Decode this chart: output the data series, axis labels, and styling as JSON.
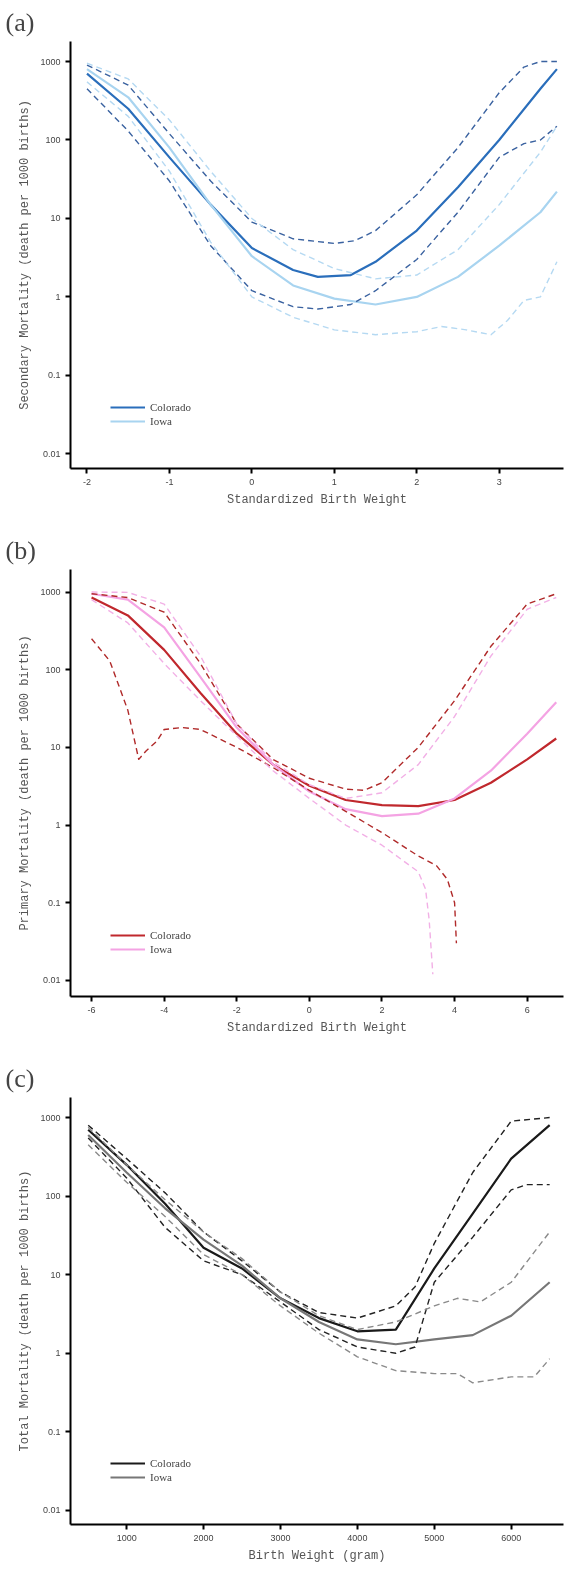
{
  "chart_data": [
    {
      "type": "line",
      "title": "(a)",
      "xlabel": "Standardized Birth Weight",
      "ylabel": "Secondary Mortality (death per 1000 births)",
      "log": "y",
      "grid": false,
      "legend": "bottom left",
      "xlim": [
        -2.2,
        3.78
      ],
      "xticks": [
        -2,
        -1,
        0,
        1,
        2,
        3
      ],
      "ylim": [
        0.0065,
        1800
      ],
      "yticks": [
        1000,
        100,
        10,
        1,
        0.1,
        0.01
      ],
      "series": [
        {
          "name": "Colorado",
          "color": "#2a6ebb",
          "line_style": "solid",
          "x": [
            -2,
            -1.5,
            -1,
            -0.5,
            0,
            0.5,
            0.8,
            1.2,
            1.5,
            2,
            2.5,
            3,
            3.5,
            3.7
          ],
          "values": [
            700,
            250,
            60,
            15,
            4.2,
            2.2,
            1.8,
            1.9,
            2.8,
            7,
            25,
            100,
            450,
            800
          ]
        },
        {
          "name": "Iowa",
          "color": "#a8d4f0",
          "line_style": "solid",
          "x": [
            -2,
            -1.5,
            -1,
            -0.5,
            0,
            0.5,
            1,
            1.5,
            2,
            2.5,
            3,
            3.5,
            3.7
          ],
          "values": [
            800,
            350,
            80,
            15,
            3.3,
            1.4,
            0.95,
            0.8,
            1.0,
            1.8,
            4.5,
            12,
            22
          ]
        },
        {
          "color": "#3a62a0",
          "line_style": "dashed",
          "x": [
            -2,
            -1.5,
            -1,
            -0.5,
            0,
            0.5,
            1,
            1.25,
            1.5,
            2,
            2.5,
            3,
            3.3,
            3.5,
            3.7
          ],
          "values": [
            900,
            500,
            120,
            30,
            9,
            5.5,
            4.8,
            5.2,
            7,
            20,
            80,
            400,
            850,
            1000,
            1000
          ]
        },
        {
          "color": "#3a62a0",
          "line_style": "dashed",
          "x": [
            -2,
            -1.5,
            -1,
            -0.5,
            0,
            0.5,
            0.8,
            1.2,
            1.5,
            2,
            2.5,
            3,
            3.3,
            3.5,
            3.7
          ],
          "values": [
            450,
            130,
            30,
            4.5,
            1.2,
            0.75,
            0.7,
            0.8,
            1.2,
            3,
            12,
            60,
            90,
            100,
            150
          ]
        },
        {
          "color": "#b5d9f2",
          "line_style": "dashed",
          "x": [
            -2,
            -1.5,
            -1,
            -0.5,
            0,
            0.5,
            1,
            1.5,
            2,
            2.5,
            3,
            3.5,
            3.7
          ],
          "values": [
            950,
            600,
            180,
            40,
            10,
            4,
            2.3,
            1.7,
            1.9,
            4,
            15,
            70,
            150
          ]
        },
        {
          "color": "#b5d9f2",
          "line_style": "dashed",
          "x": [
            -2,
            -1.5,
            -1,
            -0.5,
            0,
            0.5,
            1,
            1.5,
            2,
            2.3,
            2.6,
            2.9,
            3.1,
            3.3,
            3.5,
            3.7
          ],
          "values": [
            550,
            200,
            40,
            5,
            1.0,
            0.55,
            0.38,
            0.33,
            0.36,
            0.42,
            0.38,
            0.33,
            0.5,
            0.9,
            1,
            2.8
          ]
        }
      ]
    },
    {
      "type": "line",
      "title": "(b)",
      "xlabel": "Standardized Birth Weight",
      "ylabel": "Primary Mortality (death per 1000 births)",
      "log": "y",
      "grid": false,
      "legend": "bottom left",
      "xlim": [
        -6.58,
        7.0
      ],
      "xticks": [
        -6,
        -4,
        -2,
        0,
        2,
        4,
        6
      ],
      "ylim": [
        0.0062,
        1950
      ],
      "yticks": [
        1000,
        100,
        10,
        1,
        0.1,
        0.01
      ],
      "series": [
        {
          "name": "Colorado",
          "color": "#c0282d",
          "line_style": "solid",
          "x": [
            -6,
            -5,
            -4,
            -3,
            -2,
            -1,
            0,
            1,
            2,
            3,
            4,
            5,
            6,
            6.8
          ],
          "values": [
            850,
            500,
            180,
            50,
            15,
            6,
            3.2,
            2.1,
            1.8,
            1.75,
            2.1,
            3.5,
            7,
            13
          ]
        },
        {
          "name": "Iowa",
          "color": "#f4a3e3",
          "line_style": "solid",
          "x": [
            -6,
            -5,
            -4,
            -3,
            -2,
            -1,
            0,
            1,
            2,
            3,
            4,
            5,
            6,
            6.8
          ],
          "values": [
            950,
            800,
            350,
            80,
            18,
            6,
            2.7,
            1.6,
            1.3,
            1.4,
            2.2,
            5,
            15,
            38
          ]
        },
        {
          "color": "#b02a2a",
          "line_style": "dashed",
          "x": [
            -6,
            -5,
            -4,
            -3,
            -2,
            -1,
            0,
            1,
            1.5,
            2,
            3,
            4,
            5,
            6,
            6.8
          ],
          "values": [
            950,
            850,
            550,
            120,
            20,
            7,
            4,
            2.9,
            2.8,
            3.5,
            10,
            40,
            200,
            700,
            950
          ]
        },
        {
          "color": "#b02a2a",
          "line_style": "dashed",
          "x": [
            -6,
            -5.5,
            -5,
            -4.7,
            -4.5,
            -4.2,
            -4,
            -3.5,
            -3,
            -2,
            -1,
            0,
            1,
            2,
            3,
            3.5,
            3.8,
            4,
            4.05
          ],
          "values": [
            250,
            130,
            30,
            7,
            9,
            12,
            17,
            18,
            17,
            10,
            5.5,
            2.8,
            1.5,
            0.8,
            0.4,
            0.3,
            0.2,
            0.1,
            0.03
          ]
        },
        {
          "color": "#f2b0e6",
          "line_style": "dashed",
          "x": [
            -6,
            -5,
            -4,
            -3,
            -2,
            -1,
            0,
            1,
            2,
            3,
            4,
            5,
            6,
            6.8
          ],
          "values": [
            1000,
            990,
            700,
            150,
            20,
            6.5,
            3.3,
            2.2,
            2.6,
            6,
            25,
            150,
            600,
            850
          ]
        },
        {
          "color": "#f2b0e6",
          "line_style": "dashed",
          "x": [
            -6,
            -5,
            -4,
            -3,
            -2,
            -1,
            0,
            1,
            2,
            3,
            3.2,
            3.3,
            3.4
          ],
          "values": [
            800,
            400,
            120,
            40,
            14,
            5,
            2.2,
            1.0,
            0.55,
            0.25,
            0.15,
            0.06,
            0.012
          ]
        }
      ]
    },
    {
      "type": "line",
      "title": "(c)",
      "xlabel": "Birth Weight (gram)",
      "ylabel": "Total Mortality (death per 1000 births)",
      "log": "y",
      "grid": false,
      "legend": "bottom left",
      "xlim": [
        270,
        6680
      ],
      "xticks": [
        1000,
        2000,
        3000,
        4000,
        5000,
        6000
      ],
      "ylim": [
        0.0066,
        1800
      ],
      "yticks": [
        1000,
        100,
        10,
        1,
        0.1,
        0.01
      ],
      "series": [
        {
          "name": "Colorado",
          "color": "#1a1a1a",
          "line_style": "solid",
          "x": [
            500,
            1000,
            1500,
            2000,
            2500,
            3000,
            3500,
            4000,
            4500,
            5000,
            5500,
            6000,
            6500
          ],
          "values": [
            700,
            250,
            80,
            22,
            12,
            5,
            2.8,
            1.9,
            2,
            12,
            60,
            300,
            800
          ]
        },
        {
          "name": "Iowa",
          "color": "#777777",
          "line_style": "solid",
          "x": [
            500,
            1000,
            1500,
            2000,
            2500,
            3000,
            3500,
            4000,
            4500,
            5000,
            5500,
            6000,
            6500
          ],
          "values": [
            600,
            200,
            70,
            28,
            13,
            5,
            2.5,
            1.5,
            1.3,
            1.5,
            1.7,
            3,
            8
          ]
        },
        {
          "color": "#222222",
          "line_style": "dashed",
          "x": [
            500,
            1000,
            1500,
            2000,
            2500,
            3000,
            3500,
            4000,
            4500,
            4750,
            5000,
            5500,
            6000,
            6500
          ],
          "values": [
            800,
            300,
            110,
            35,
            15,
            6,
            3.3,
            2.8,
            4,
            7,
            25,
            200,
            900,
            1000
          ]
        },
        {
          "color": "#222222",
          "line_style": "dashed",
          "x": [
            500,
            1000,
            1500,
            2000,
            2500,
            3000,
            3500,
            4000,
            4500,
            4750,
            5000,
            5500,
            6000,
            6200,
            6500
          ],
          "values": [
            550,
            170,
            40,
            15,
            10,
            4.5,
            2,
            1.2,
            1,
            1.2,
            8,
            30,
            120,
            140,
            140
          ]
        },
        {
          "color": "#8a8a8a",
          "line_style": "dashed",
          "x": [
            500,
            1000,
            1500,
            2000,
            2500,
            3000,
            3500,
            4000,
            4500,
            5000,
            5300,
            5600,
            6000,
            6500
          ],
          "values": [
            750,
            250,
            90,
            35,
            16,
            6,
            3,
            2,
            2.5,
            4,
            5,
            4.5,
            8,
            35
          ]
        },
        {
          "color": "#8a8a8a",
          "line_style": "dashed",
          "x": [
            500,
            1000,
            1500,
            2000,
            2500,
            3000,
            3500,
            4000,
            4500,
            5000,
            5300,
            5500,
            6000,
            6300,
            6500
          ],
          "values": [
            450,
            150,
            55,
            18,
            10,
            4,
            1.8,
            0.9,
            0.6,
            0.55,
            0.55,
            0.42,
            0.5,
            0.5,
            0.85
          ]
        }
      ]
    }
  ]
}
